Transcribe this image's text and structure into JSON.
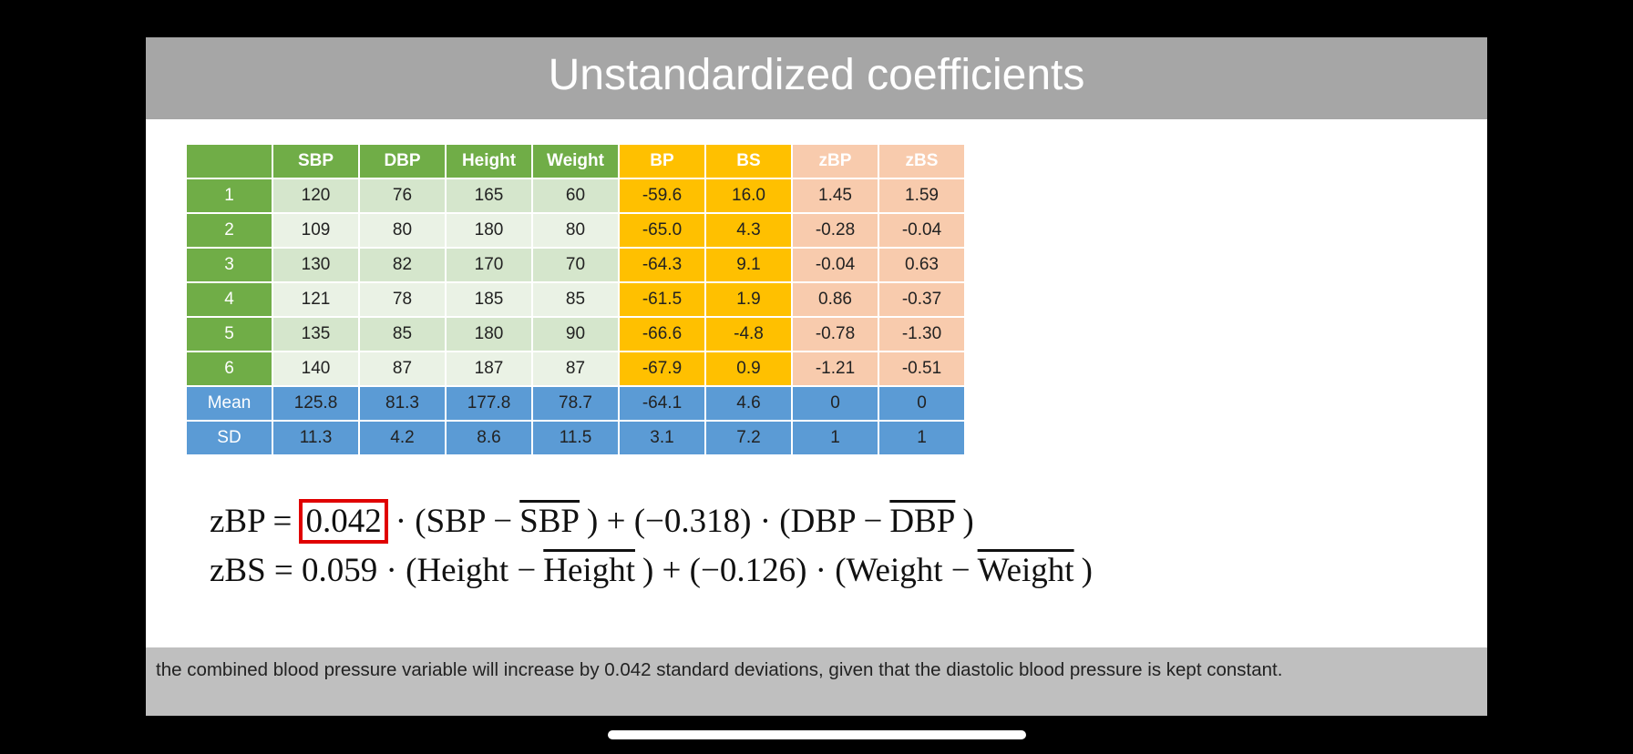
{
  "title": "Unstandardized coefficients",
  "table": {
    "header": [
      "SBP",
      "DBP",
      "Height",
      "Weight",
      "BP",
      "BS",
      "zBP",
      "zBS"
    ],
    "rows": [
      {
        "label": "1",
        "cells": [
          "120",
          "76",
          "165",
          "60",
          "-59.6",
          "16.0",
          "1.45",
          "1.59"
        ]
      },
      {
        "label": "2",
        "cells": [
          "109",
          "80",
          "180",
          "80",
          "-65.0",
          "4.3",
          "-0.28",
          "-0.04"
        ]
      },
      {
        "label": "3",
        "cells": [
          "130",
          "82",
          "170",
          "70",
          "-64.3",
          "9.1",
          "-0.04",
          "0.63"
        ]
      },
      {
        "label": "4",
        "cells": [
          "121",
          "78",
          "185",
          "85",
          "-61.5",
          "1.9",
          "0.86",
          "-0.37"
        ]
      },
      {
        "label": "5",
        "cells": [
          "135",
          "85",
          "180",
          "90",
          "-66.6",
          "-4.8",
          "-0.78",
          "-1.30"
        ]
      },
      {
        "label": "6",
        "cells": [
          "140",
          "87",
          "187",
          "87",
          "-67.9",
          "0.9",
          "-1.21",
          "-0.51"
        ]
      },
      {
        "label": "Mean",
        "cells": [
          "125.8",
          "81.3",
          "177.8",
          "78.7",
          "-64.1",
          "4.6",
          "0",
          "0"
        ]
      },
      {
        "label": "SD",
        "cells": [
          "11.3",
          "4.2",
          "8.6",
          "11.5",
          "3.1",
          "7.2",
          "1",
          "1"
        ]
      }
    ]
  },
  "equations": [
    {
      "parts": [
        {
          "text": "zBP ="
        },
        {
          "text": "0.042",
          "boxed": true
        },
        {
          "text": "· (SBP −"
        },
        {
          "text": "SBP",
          "overline": true
        },
        {
          "text": ") + (−0.318) · (DBP −"
        },
        {
          "text": "DBP",
          "overline": true
        },
        {
          "text": ")"
        }
      ]
    },
    {
      "parts": [
        {
          "text": "zBS = 0.059 · (Height −"
        },
        {
          "text": "Height",
          "overline": true
        },
        {
          "text": ") + (−0.126) · (Weight −"
        },
        {
          "text": "Weight",
          "overline": true
        },
        {
          "text": ")"
        }
      ]
    }
  ],
  "caption": "the combined blood pressure variable will increase by 0.042 standard deviations, given that the diastolic blood pressure is kept constant."
}
